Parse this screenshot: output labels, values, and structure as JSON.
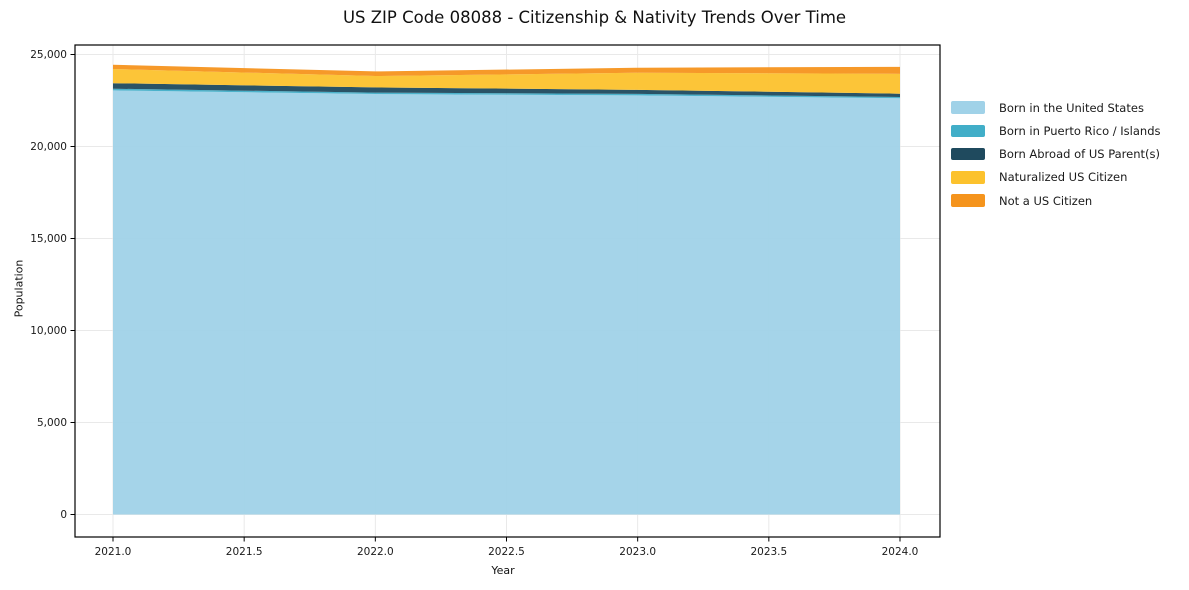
{
  "title": "US ZIP Code 08088 - Citizenship & Nativity Trends Over Time",
  "chart_data": {
    "type": "area",
    "stacked": true,
    "title": "US ZIP Code 08088 - Citizenship & Nativity Trends Over Time",
    "xlabel": "Year",
    "ylabel": "Population",
    "x": [
      2021,
      2022,
      2023,
      2024
    ],
    "series": [
      {
        "name": "Born in the United States",
        "color": "#A0D2E8",
        "values": [
          23050,
          22850,
          22780,
          22620
        ]
      },
      {
        "name": "Born in Puerto Rico / Islands",
        "color": "#41AEC8",
        "values": [
          90,
          80,
          80,
          70
        ]
      },
      {
        "name": "Born Abroad of US Parent(s)",
        "color": "#1F4A5E",
        "values": [
          300,
          280,
          220,
          180
        ]
      },
      {
        "name": "Naturalized US Citizen",
        "color": "#FCC22D",
        "values": [
          770,
          620,
          930,
          1080
        ]
      },
      {
        "name": "Not a US Citizen",
        "color": "#F5941D",
        "values": [
          230,
          250,
          270,
          380
        ]
      }
    ],
    "x_ticks": [
      2021.0,
      2021.5,
      2022.0,
      2022.5,
      2023.0,
      2023.5,
      2024.0
    ],
    "x_tick_labels": [
      "2021.0",
      "2021.5",
      "2022.0",
      "2022.5",
      "2023.0",
      "2023.5",
      "2024.0"
    ],
    "y_ticks": [
      0,
      5000,
      10000,
      15000,
      20000,
      25000
    ],
    "y_tick_labels": [
      "0",
      "5,000",
      "10,000",
      "15,000",
      "20,000",
      "25,000"
    ],
    "xlim": [
      2020.85,
      2024.15
    ],
    "ylim": [
      0,
      25000
    ],
    "grid": true,
    "legend_position": "right of plot, no frame",
    "grid_color": "#e9e9e9",
    "spine_color": "#000000"
  }
}
